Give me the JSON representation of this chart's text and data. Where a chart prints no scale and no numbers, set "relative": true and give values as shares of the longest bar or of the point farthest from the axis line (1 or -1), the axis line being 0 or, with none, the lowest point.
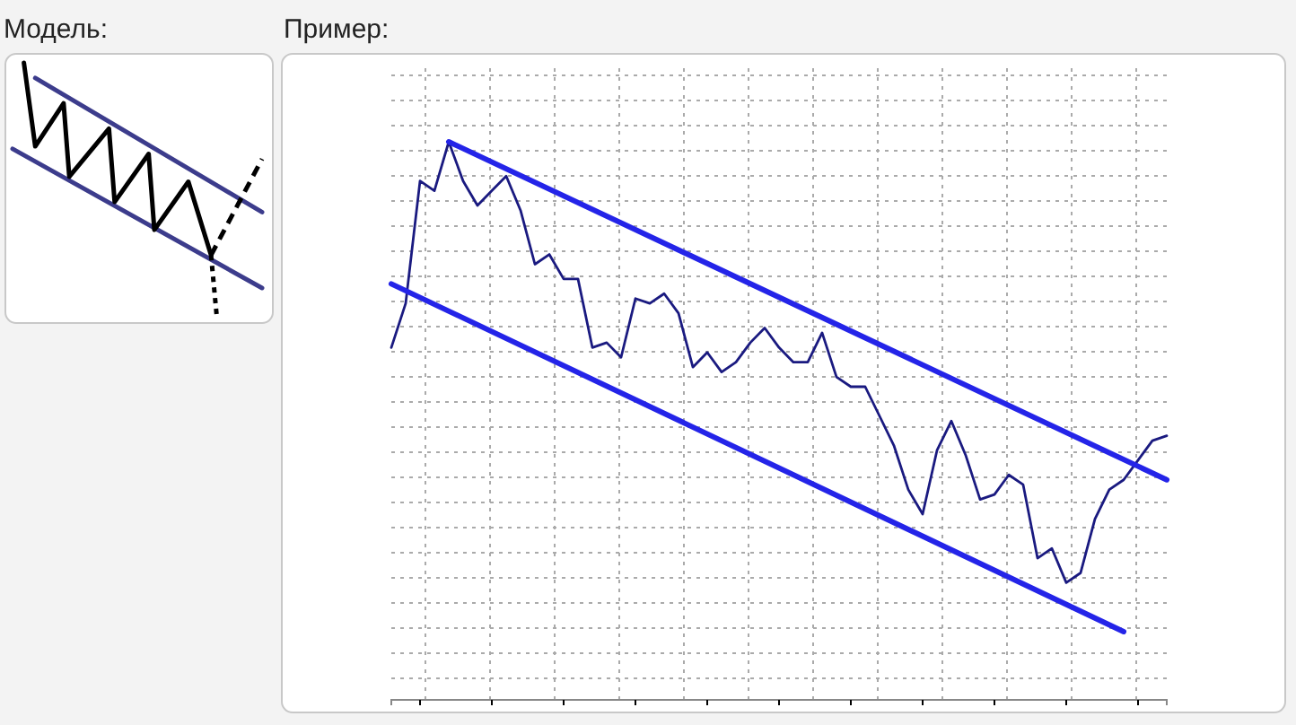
{
  "chart_data": [
    {
      "type": "line",
      "title": "Модель:",
      "relative": true,
      "categories": [
        null,
        null,
        null,
        null,
        null,
        null,
        null,
        null,
        null,
        null,
        null,
        null,
        null,
        null,
        null,
        null,
        null,
        null,
        null,
        null,
        null,
        null,
        null,
        null,
        null,
        null,
        null,
        null,
        null,
        null,
        null,
        null,
        null,
        null,
        null,
        null,
        null,
        null,
        null,
        null,
        null,
        null,
        null,
        null,
        null
      ],
      "series": [
        {
          "color": "#3c3c8c",
          "values": [
            null,
            null,
            null,
            null,
            0.94,
            null,
            null,
            null,
            null,
            null,
            null,
            null,
            null,
            null,
            null,
            null,
            null,
            null,
            null,
            null,
            null,
            null,
            null,
            null,
            null,
            null,
            null,
            null,
            null,
            null,
            null,
            null,
            null,
            null,
            null,
            null,
            null,
            null,
            null,
            null,
            null,
            null,
            null,
            null,
            0.41
          ]
        },
        {
          "color": "#3c3c8c",
          "values": [
            0.66,
            null,
            null,
            null,
            null,
            null,
            null,
            null,
            null,
            null,
            null,
            null,
            null,
            null,
            null,
            null,
            null,
            null,
            null,
            null,
            null,
            null,
            null,
            null,
            null,
            null,
            null,
            null,
            null,
            null,
            null,
            null,
            null,
            null,
            null,
            null,
            null,
            null,
            null,
            null,
            null,
            null,
            null,
            null,
            0.11
          ]
        },
        {
          "color": "#000000",
          "values": [
            null,
            null,
            1.0,
            null,
            0.67,
            null,
            null,
            null,
            null,
            0.84,
            0.55,
            null,
            null,
            null,
            null,
            null,
            null,
            0.74,
            0.45,
            null,
            null,
            null,
            null,
            null,
            0.64,
            0.34,
            null,
            null,
            null,
            null,
            null,
            0.53,
            null,
            null,
            null,
            0.24,
            null,
            null,
            null,
            null,
            null,
            null,
            null,
            null,
            null
          ]
        },
        {
          "color": "#000000",
          "line_style": "dashed",
          "values": [
            null,
            null,
            null,
            null,
            null,
            null,
            null,
            null,
            null,
            null,
            null,
            null,
            null,
            null,
            null,
            null,
            null,
            null,
            null,
            null,
            null,
            null,
            null,
            null,
            null,
            null,
            null,
            null,
            null,
            null,
            null,
            null,
            null,
            null,
            null,
            0.24,
            null,
            null,
            null,
            null,
            null,
            null,
            null,
            null,
            0.62
          ]
        },
        {
          "color": "#000000",
          "line_style": "dotted",
          "values": [
            null,
            null,
            null,
            null,
            null,
            null,
            null,
            null,
            null,
            null,
            null,
            null,
            null,
            null,
            null,
            null,
            null,
            null,
            null,
            null,
            null,
            null,
            null,
            null,
            null,
            null,
            null,
            null,
            null,
            null,
            null,
            null,
            null,
            null,
            null,
            0.24,
            0,
            null,
            null,
            null,
            null,
            null,
            null,
            null,
            null
          ]
        }
      ]
    },
    {
      "type": "line",
      "title": "Пример:",
      "relative": true,
      "grid": true,
      "categories": [
        null,
        null,
        null,
        null,
        null,
        null,
        null,
        null,
        null,
        null,
        null,
        null,
        null,
        null,
        null,
        null,
        null,
        null,
        null,
        null,
        null,
        null,
        null,
        null,
        null,
        null,
        null,
        null,
        null,
        null,
        null,
        null,
        null,
        null,
        null,
        null,
        null,
        null,
        null,
        null,
        null,
        null,
        null,
        null,
        null,
        null,
        null,
        null,
        null,
        null,
        null,
        null,
        null,
        null,
        null
      ],
      "series": [
        {
          "color": "#1a1a80",
          "values": [
            0.58,
            0.67,
            0.92,
            0.9,
            1.0,
            0.92,
            0.87,
            0.9,
            0.93,
            0.86,
            0.75,
            0.77,
            0.72,
            0.72,
            0.58,
            0.59,
            0.56,
            0.68,
            0.67,
            0.69,
            0.65,
            0.54,
            0.57,
            0.53,
            0.55,
            0.59,
            0.62,
            0.58,
            0.55,
            0.55,
            0.61,
            0.52,
            0.5,
            0.5,
            0.44,
            0.38,
            0.29,
            0.24,
            0.37,
            0.43,
            0.36,
            0.27,
            0.28,
            0.32,
            0.3,
            0.15,
            0.17,
            0.1,
            0.12,
            0.23,
            0.29,
            0.31,
            0.35,
            0.39,
            0.4
          ]
        },
        {
          "color": "#2424e8",
          "values": [
            null,
            null,
            null,
            null,
            1.0,
            null,
            null,
            null,
            null,
            null,
            null,
            null,
            null,
            null,
            null,
            null,
            null,
            null,
            null,
            null,
            null,
            null,
            null,
            null,
            null,
            null,
            null,
            null,
            null,
            null,
            null,
            null,
            null,
            null,
            null,
            null,
            null,
            null,
            null,
            null,
            null,
            null,
            null,
            null,
            null,
            null,
            null,
            null,
            null,
            null,
            null,
            null,
            null,
            null,
            0.31
          ]
        },
        {
          "color": "#2424e8",
          "values": [
            0.71,
            null,
            null,
            null,
            null,
            null,
            null,
            null,
            null,
            null,
            null,
            null,
            null,
            null,
            null,
            null,
            null,
            null,
            null,
            null,
            null,
            null,
            null,
            null,
            null,
            null,
            null,
            null,
            null,
            null,
            null,
            null,
            null,
            null,
            null,
            null,
            null,
            null,
            null,
            null,
            null,
            null,
            null,
            null,
            null,
            null,
            null,
            null,
            null,
            null,
            null,
            0,
            null,
            null,
            null
          ]
        }
      ]
    }
  ]
}
